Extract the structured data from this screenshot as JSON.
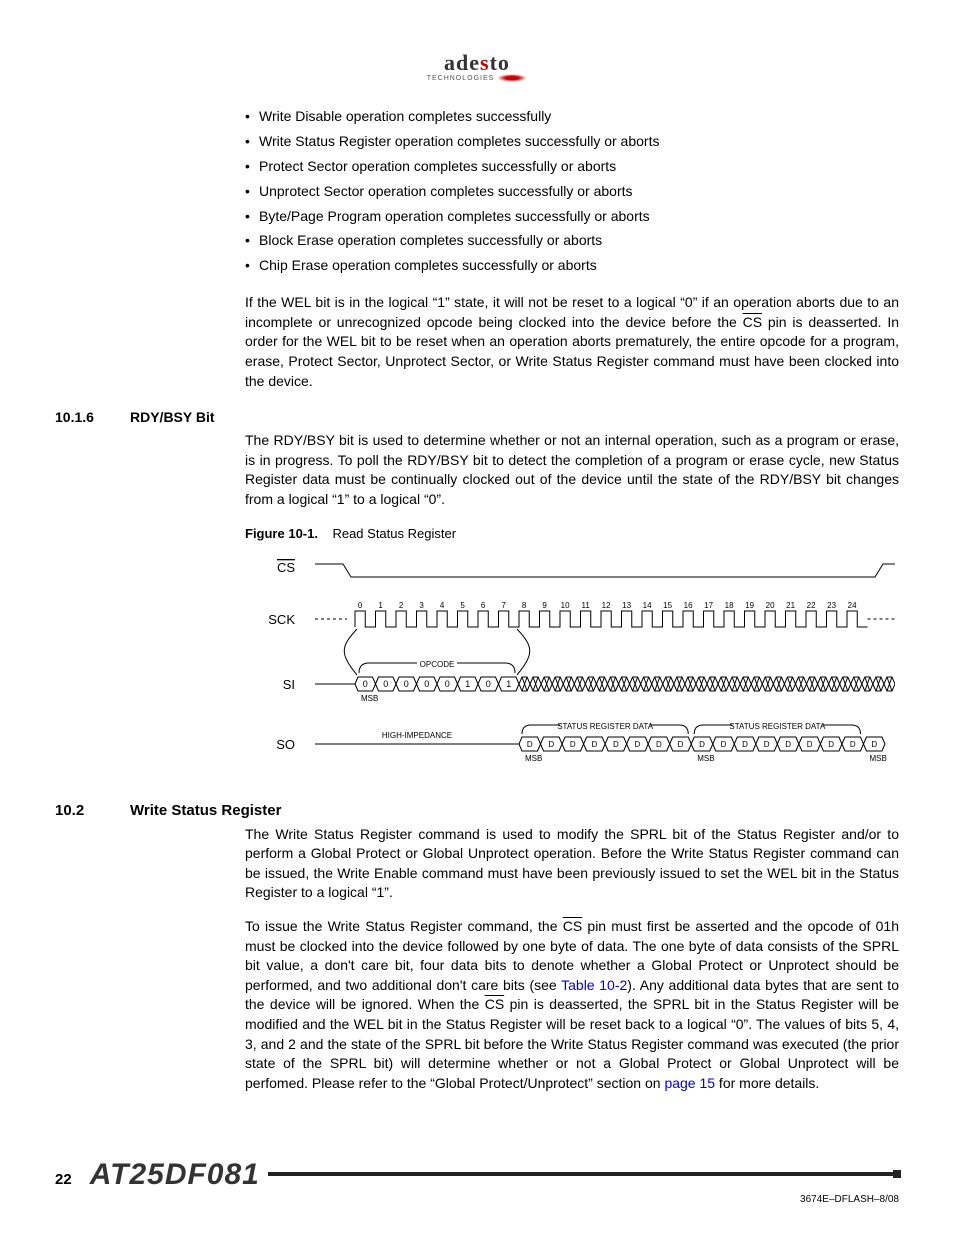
{
  "logo": {
    "name_part1": "ade",
    "name_part2": "s",
    "name_part3": "to",
    "sub": "TECHNOLOGIES"
  },
  "bullets": [
    "Write Disable operation completes successfully",
    "Write Status Register operation completes successfully or aborts",
    "Protect Sector operation completes successfully or aborts",
    "Unprotect Sector operation completes successfully or aborts",
    "Byte/Page Program operation completes successfully or aborts",
    "Block Erase operation completes successfully or aborts",
    "Chip Erase operation completes successfully or aborts"
  ],
  "para_wel_1a": "If the WEL bit is in the logical “1” state, it will not be reset to a logical “0” if an operation aborts due to an incomplete or unrecognized opcode being clocked into the device before the ",
  "para_wel_1b": " pin is deasserted. In order for the WEL bit to be reset when an operation aborts prematurely, the entire opcode for a program, erase, Protect Sector, Unprotect Sector, or Write Status Register command must have been clocked into the device.",
  "cs_text": "CS",
  "sec_10_1_6": {
    "num": "10.1.6",
    "title": "RDY/BSY Bit"
  },
  "para_rdy": "The RDY/BSY bit is used to determine whether or not an internal operation, such as a program or erase, is in progress. To poll the RDY/BSY bit to detect the completion of a program or erase cycle, new Status Register data must be continually clocked out of the device until the state of the RDY/BSY bit changes from a logical “1” to a logical “0”.",
  "figure": {
    "label": "Figure 10-1.",
    "title": "Read Status Register"
  },
  "diagram": {
    "signals": {
      "cs": "CS",
      "sck": "SCK",
      "si": "SI",
      "so": "SO"
    },
    "clock_ticks": [
      "0",
      "1",
      "2",
      "3",
      "4",
      "5",
      "6",
      "7",
      "8",
      "9",
      "10",
      "11",
      "12",
      "13",
      "14",
      "15",
      "16",
      "17",
      "18",
      "19",
      "20",
      "21",
      "22",
      "23",
      "24"
    ],
    "opcode_label": "OPCODE",
    "opcode_bits": [
      "0",
      "0",
      "0",
      "0",
      "0",
      "1",
      "0",
      "1"
    ],
    "msb": "MSB",
    "hi_z": "HIGH-IMPEDANCE",
    "status_reg": "STATUS REGISTER DATA",
    "so_bits": "D",
    "colors": {
      "line": "#000000",
      "bg": "#ffffff"
    },
    "stroke_width": 1,
    "tick_count": 25,
    "si_x_count": 34,
    "so_d_count": 17,
    "font_size_tick": 8,
    "font_size_label": 13,
    "font_size_small": 8
  },
  "sec_10_2": {
    "num": "10.2",
    "title": "Write Status Register"
  },
  "para_wsr_1": "The Write Status Register command is used to modify the SPRL bit of the Status Register and/or to perform a Global Protect or Global Unprotect operation. Before the Write Status Register command can be issued, the Write Enable command must have been previously issued to set the WEL bit in the Status Register to a logical “1”.",
  "para_wsr_2a": "To issue the Write Status Register command, the ",
  "para_wsr_2b": " pin must first be asserted and the opcode of 01h must be clocked into the device followed by one byte of data. The one byte of data consists of the SPRL bit value, a don't care bit, four data bits to denote whether a Global Protect or Unprotect should be performed, and two additional don't care bits (see ",
  "table_link": "Table 10-2",
  "para_wsr_2c": "). Any additional data bytes that are sent to the device will be ignored. When the ",
  "para_wsr_2d": " pin is deasserted, the SPRL bit in the Status Register will be modified and the WEL bit in the Status Register will be reset back to a logical “0”. The values of bits 5, 4, 3, and 2 and the state of the SPRL bit before the Write Status Register command was executed (the prior state of the SPRL bit) will determine whether or not a Global Protect or Global Unprotect will be perfomed. Please refer to the “Global Protect/Unprotect” section on ",
  "page_link": "page 15",
  "para_wsr_2e": " for more details.",
  "footer": {
    "page": "22",
    "part": "AT25DF081",
    "rev": "3674E–DFLASH–8/08"
  }
}
